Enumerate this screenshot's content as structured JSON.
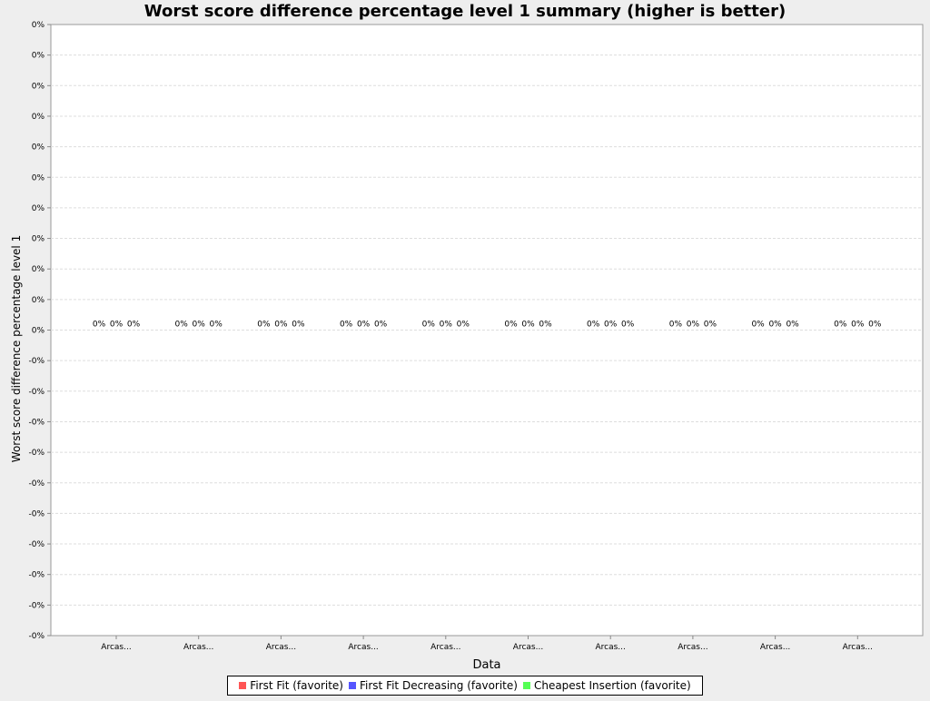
{
  "chart_data": {
    "type": "bar",
    "title": "Worst score difference percentage level 1 summary (higher is better)",
    "xlabel": "Data",
    "ylabel": "Worst score difference percentage level 1",
    "categories": [
      "Arcas...",
      "Arcas...",
      "Arcas...",
      "Arcas...",
      "Arcas...",
      "Arcas...",
      "Arcas...",
      "Arcas...",
      "Arcas...",
      "Arcas..."
    ],
    "series": [
      {
        "name": "First Fit (favorite)",
        "color": "#ff5555",
        "values": [
          0,
          0,
          0,
          0,
          0,
          0,
          0,
          0,
          0,
          0
        ]
      },
      {
        "name": "First Fit Decreasing (favorite)",
        "color": "#5555ff",
        "values": [
          0,
          0,
          0,
          0,
          0,
          0,
          0,
          0,
          0,
          0
        ]
      },
      {
        "name": "Cheapest Insertion (favorite)",
        "color": "#55ff55",
        "values": [
          0,
          0,
          0,
          0,
          0,
          0,
          0,
          0,
          0,
          0
        ]
      }
    ],
    "data_label": "0%",
    "y_ticks": [
      "0%",
      "0%",
      "0%",
      "0%",
      "0%",
      "0%",
      "0%",
      "0%",
      "0%",
      "0%",
      "0%",
      "-0%",
      "-0%",
      "-0%",
      "-0%",
      "-0%",
      "-0%",
      "-0%",
      "-0%",
      "-0%",
      "-0%"
    ],
    "ylim": [
      -0.001,
      0.001
    ],
    "grid": true,
    "legend_position": "bottom"
  }
}
